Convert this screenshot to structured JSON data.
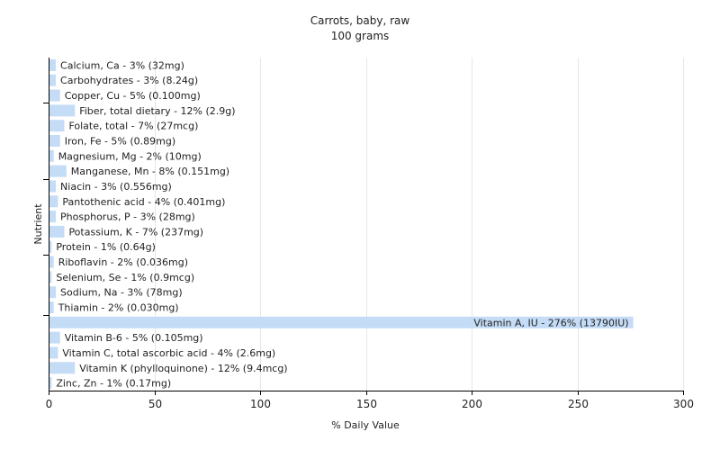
{
  "chart_data": {
    "type": "bar",
    "orientation": "horizontal",
    "title": "Carrots, baby, raw",
    "subtitle": "100 grams",
    "xlabel": "% Daily Value",
    "ylabel": "Nutrient",
    "xlim": [
      0,
      300
    ],
    "xticks": [
      0,
      50,
      100,
      150,
      200,
      250,
      300
    ],
    "grid": true,
    "bars": [
      {
        "value": 3,
        "label": "Calcium, Ca - 3% (32mg)"
      },
      {
        "value": 3,
        "label": "Carbohydrates - 3% (8.24g)"
      },
      {
        "value": 5,
        "label": "Copper, Cu - 5% (0.100mg)"
      },
      {
        "value": 12,
        "label": "Fiber, total dietary - 12% (2.9g)"
      },
      {
        "value": 7,
        "label": "Folate, total - 7% (27mcg)"
      },
      {
        "value": 5,
        "label": "Iron, Fe - 5% (0.89mg)"
      },
      {
        "value": 2,
        "label": "Magnesium, Mg - 2% (10mg)"
      },
      {
        "value": 8,
        "label": "Manganese, Mn - 8% (0.151mg)"
      },
      {
        "value": 3,
        "label": "Niacin - 3% (0.556mg)"
      },
      {
        "value": 4,
        "label": "Pantothenic acid - 4% (0.401mg)"
      },
      {
        "value": 3,
        "label": "Phosphorus, P - 3% (28mg)"
      },
      {
        "value": 7,
        "label": "Potassium, K - 7% (237mg)"
      },
      {
        "value": 1,
        "label": "Protein - 1% (0.64g)"
      },
      {
        "value": 2,
        "label": "Riboflavin - 2% (0.036mg)"
      },
      {
        "value": 1,
        "label": "Selenium, Se - 1% (0.9mcg)"
      },
      {
        "value": 3,
        "label": "Sodium, Na - 3% (78mg)"
      },
      {
        "value": 2,
        "label": "Thiamin - 2% (0.030mg)"
      },
      {
        "value": 276,
        "label": "Vitamin A, IU - 276% (13790IU)"
      },
      {
        "value": 5,
        "label": "Vitamin B-6 - 5% (0.105mg)"
      },
      {
        "value": 4,
        "label": "Vitamin C, total ascorbic acid - 4% (2.6mg)"
      },
      {
        "value": 12,
        "label": "Vitamin K (phylloquinone) - 12% (9.4mcg)"
      },
      {
        "value": 1,
        "label": "Zinc, Zn - 1% (0.17mg)"
      }
    ],
    "colors": {
      "bar": "#c5dcf7",
      "grid": "#e6e6e6",
      "axis": "#000000"
    }
  }
}
